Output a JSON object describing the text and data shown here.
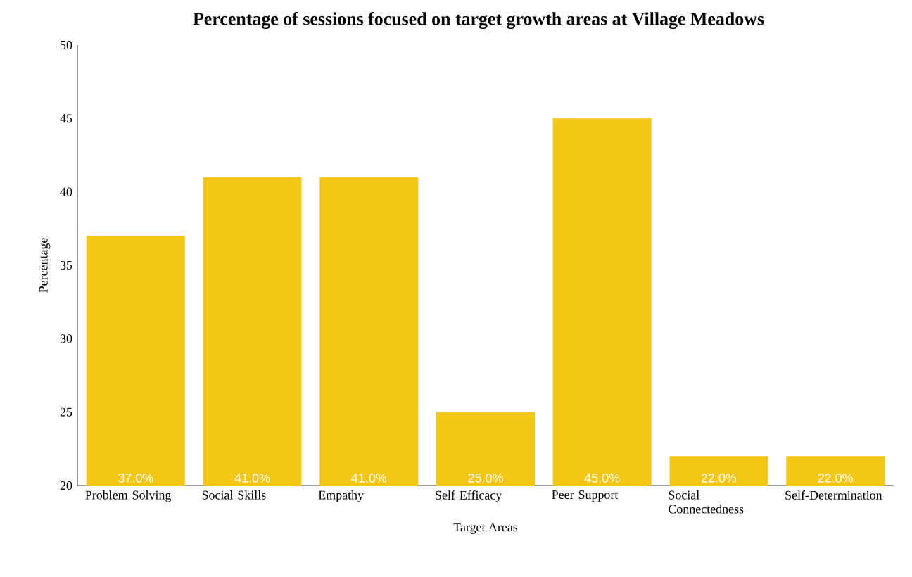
{
  "chart_data": {
    "type": "bar",
    "title": "Percentage of sessions focused on target growth areas at Village Meadows",
    "xlabel": "Target Areas",
    "ylabel": "Percentage",
    "categories": [
      "Problem Solving",
      "Social Skills",
      "Empathy",
      "Self Efficacy",
      "Peer Support",
      "Social Connectedness",
      "Self-Determination"
    ],
    "values": [
      37,
      41,
      41,
      25,
      45,
      22,
      22
    ],
    "value_labels": [
      "37.0%",
      "41.0%",
      "41.0%",
      "25.0%",
      "45.0%",
      "22.0%",
      "22.0%"
    ],
    "color": "#f4c716",
    "ylim": [
      20,
      50
    ],
    "yticks": [
      20,
      25,
      30,
      35,
      40,
      45,
      50
    ],
    "grid": false
  }
}
